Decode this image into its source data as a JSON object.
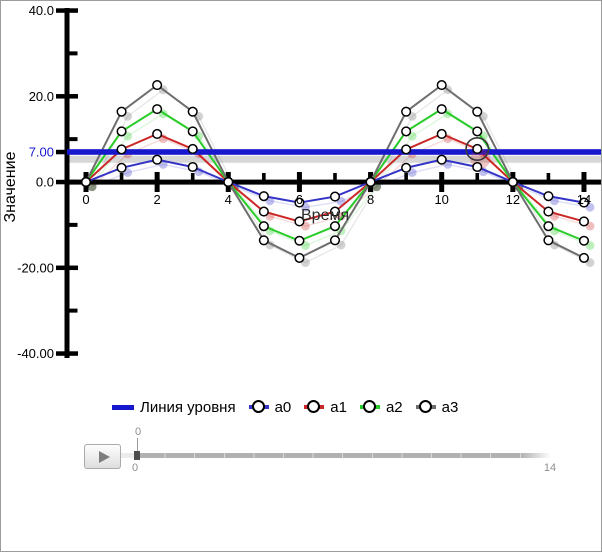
{
  "chart_data": {
    "type": "line",
    "title": "",
    "xlabel": "Время",
    "ylabel": "Значение",
    "x": [
      0,
      1,
      2,
      3,
      4,
      5,
      6,
      7,
      8,
      9,
      10,
      11,
      12,
      13,
      14
    ],
    "series": [
      {
        "name": "a0",
        "color": "#3434c8",
        "values": [
          0,
          3.3,
          5.2,
          3.5,
          0,
          -3.3,
          -4.8,
          -3.4,
          0,
          3.3,
          5.2,
          3.5,
          0,
          -3.3,
          -4.8
        ]
      },
      {
        "name": "a1",
        "color": "#cb2727",
        "values": [
          0,
          7.6,
          11.2,
          7.7,
          0,
          -6.9,
          -9.2,
          -6.9,
          0,
          7.6,
          11.2,
          7.7,
          0,
          -6.9,
          -9.2
        ]
      },
      {
        "name": "a2",
        "color": "#29cc29",
        "values": [
          0,
          11.8,
          17.0,
          11.8,
          0,
          -10.3,
          -13.7,
          -10.3,
          0,
          11.8,
          17.0,
          11.8,
          0,
          -10.3,
          -13.7
        ]
      },
      {
        "name": "a3",
        "color": "#6e6e6e",
        "values": [
          0,
          16.4,
          22.6,
          16.4,
          0,
          -13.6,
          -17.7,
          -13.6,
          0,
          16.4,
          22.6,
          16.4,
          0,
          -13.6,
          -17.7
        ]
      }
    ],
    "level_line": {
      "name": "Линия уровня",
      "value": 7,
      "label": "7.00",
      "color": "#1717cd"
    },
    "ghost": {
      "dx": 0.17,
      "dy": -1.1,
      "opacity": 0.3,
      "level_band_value": 5.3
    },
    "highlight": {
      "series_index": 1,
      "x": 11
    },
    "xlim": [
      0,
      14.6
    ],
    "ylim": [
      -40,
      40
    ],
    "grid": false,
    "legend_position": "bottom",
    "marker": "open-circle",
    "y_ticks": [
      {
        "label": "40.0",
        "value": 40
      },
      {
        "label": "20.0",
        "value": 20
      },
      {
        "label": "7.00",
        "value": 7,
        "color": "#1717cd"
      },
      {
        "label": "0.0",
        "value": 0
      },
      {
        "label": "-20.00",
        "value": -20
      },
      {
        "label": "-40.00",
        "value": -40
      }
    ],
    "y_minor_ticks": [
      30,
      10,
      -10,
      -30
    ],
    "x_ticks": [
      {
        "label": "0",
        "value": 0
      },
      {
        "label": "2",
        "value": 2
      },
      {
        "label": "4",
        "value": 4
      },
      {
        "label": "6",
        "value": 6
      },
      {
        "label": "8",
        "value": 8
      },
      {
        "label": "10",
        "value": 10
      },
      {
        "label": "12",
        "value": 12
      },
      {
        "label": "14",
        "value": 14
      }
    ],
    "x_minor_ticks": [
      1,
      3,
      5,
      7,
      9,
      11,
      13
    ]
  },
  "legend": {
    "items": [
      {
        "label": "Линия уровня",
        "color": "#1717cd",
        "type": "line"
      },
      {
        "label": "a0",
        "color": "#3434c8",
        "type": "line-circle"
      },
      {
        "label": "a1",
        "color": "#cb2727",
        "type": "line-circle"
      },
      {
        "label": "a2",
        "color": "#29cc29",
        "type": "line-circle"
      },
      {
        "label": "a3",
        "color": "#6e6e6e",
        "type": "line-circle"
      }
    ]
  },
  "player": {
    "play_icon": "play-triangle",
    "current_label": "0",
    "min_label": "0",
    "max_label": "14",
    "steps": 14
  }
}
